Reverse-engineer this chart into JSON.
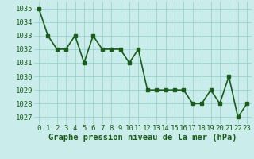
{
  "x": [
    0,
    1,
    2,
    3,
    4,
    5,
    6,
    7,
    8,
    9,
    10,
    11,
    12,
    13,
    14,
    15,
    16,
    17,
    18,
    19,
    20,
    21,
    22,
    23
  ],
  "y": [
    1035,
    1033,
    1032,
    1032,
    1033,
    1031,
    1033,
    1032,
    1032,
    1032,
    1031,
    1032,
    1029,
    1029,
    1029,
    1029,
    1029,
    1028,
    1028,
    1029,
    1028,
    1030,
    1027,
    1028
  ],
  "line_color": "#1a5c1a",
  "marker": "s",
  "marker_size": 2.5,
  "background_color": "#caecea",
  "grid_color": "#8fcfca",
  "xlabel": "Graphe pression niveau de la mer (hPa)",
  "xlabel_fontsize": 7.5,
  "ylim": [
    1026.5,
    1035.5
  ],
  "yticks": [
    1027,
    1028,
    1029,
    1030,
    1031,
    1032,
    1033,
    1034,
    1035
  ],
  "xticks": [
    0,
    1,
    2,
    3,
    4,
    5,
    6,
    7,
    8,
    9,
    10,
    11,
    12,
    13,
    14,
    15,
    16,
    17,
    18,
    19,
    20,
    21,
    22,
    23
  ],
  "tick_label_fontsize": 6.5,
  "line_width": 1.2
}
